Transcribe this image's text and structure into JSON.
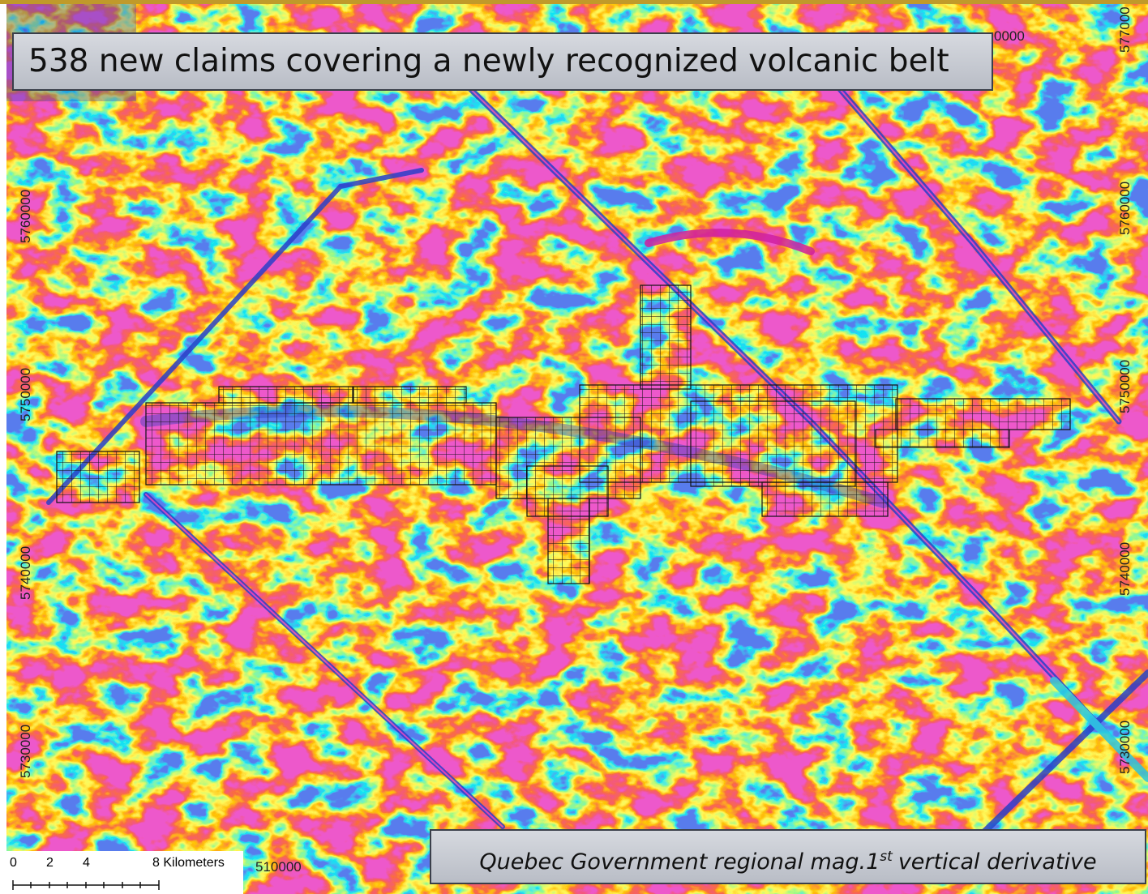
{
  "title": "538 new claims covering a newly recognized volcanic belt",
  "caption": {
    "text": "Quebec Government regional mag.1",
    "superscript": "st",
    "suffix": "vertical derivative"
  },
  "grid_labels": {
    "top": [
      "0000"
    ],
    "bottom": [
      "510000"
    ],
    "left": [
      "5760000",
      "5750000",
      "5740000",
      "5730000"
    ],
    "right": [
      "577000",
      "5760000",
      "5750000",
      "5740000",
      "5730000"
    ]
  },
  "scale_bar": {
    "labels": [
      "0",
      "2",
      "4",
      "8 Kilometers"
    ]
  }
}
